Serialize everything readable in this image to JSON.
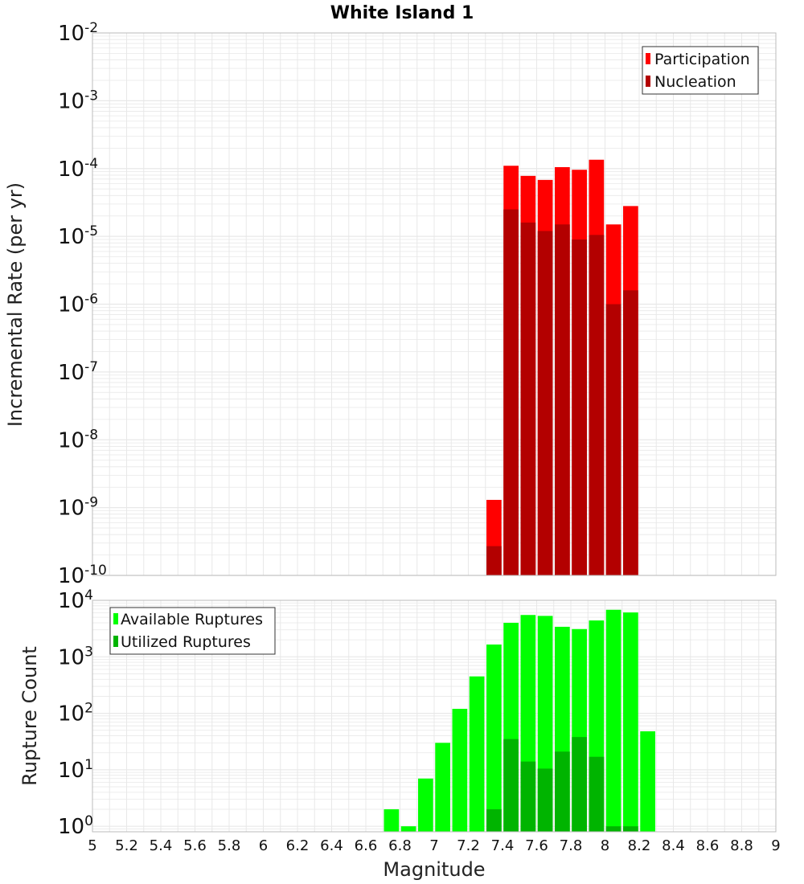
{
  "chart_data": [
    {
      "type": "bar",
      "title": "White Island 1",
      "xlabel": "",
      "ylabel": "Incremental Rate (per yr)",
      "y_scale": "log",
      "ylim": [
        1e-10,
        0.01
      ],
      "xlim": [
        5,
        9
      ],
      "legend_position": "top-right",
      "grid": true,
      "series": [
        {
          "name": "Participation",
          "color": "#ff0000",
          "x": [
            7.35,
            7.45,
            7.55,
            7.65,
            7.75,
            7.85,
            7.95,
            8.05,
            8.15
          ],
          "values": [
            1.3e-09,
            0.00011,
            7.8e-05,
            6.8e-05,
            0.000105,
            9.6e-05,
            0.000135,
            1.5e-05,
            2.8e-05
          ]
        },
        {
          "name": "Nucleation",
          "color": "#b30000",
          "x": [
            7.35,
            7.45,
            7.55,
            7.65,
            7.75,
            7.85,
            7.95,
            8.05,
            8.15
          ],
          "values": [
            2.7e-10,
            2.5e-05,
            1.6e-05,
            1.2e-05,
            1.5e-05,
            9e-06,
            1.05e-05,
            1e-06,
            1.6e-06
          ]
        }
      ]
    },
    {
      "type": "bar",
      "title": "",
      "xlabel": "Magnitude",
      "ylabel": "Rupture Count",
      "y_scale": "log",
      "ylim": [
        0.8,
        10000.0
      ],
      "xlim": [
        5,
        9
      ],
      "legend_position": "top-left",
      "grid": true,
      "series": [
        {
          "name": "Available Ruptures",
          "color": "#00ff00",
          "x": [
            6.75,
            6.85,
            6.95,
            7.05,
            7.15,
            7.25,
            7.35,
            7.45,
            7.55,
            7.65,
            7.75,
            7.85,
            7.95,
            8.05,
            8.15,
            8.25
          ],
          "values": [
            2,
            1,
            7,
            30,
            120,
            450,
            1650,
            4000,
            5500,
            5300,
            3400,
            3100,
            4400,
            6800,
            6100,
            48
          ]
        },
        {
          "name": "Utilized Ruptures",
          "color": "#00b400",
          "x": [
            7.35,
            7.45,
            7.55,
            7.65,
            7.75,
            7.85,
            7.95,
            8.05,
            8.15
          ],
          "values": [
            2,
            35,
            14,
            10.5,
            21,
            38,
            17,
            1,
            1
          ]
        }
      ]
    }
  ],
  "x_ticks": [
    "5",
    "5.2",
    "5.4",
    "5.6",
    "5.8",
    "6",
    "6.2",
    "6.4",
    "6.6",
    "6.8",
    "7",
    "7.2",
    "7.4",
    "7.6",
    "7.8",
    "8",
    "8.2",
    "8.4",
    "8.6",
    "8.8",
    "9"
  ],
  "top_y_ticks": [
    {
      "base": "10",
      "exp": "-2"
    },
    {
      "base": "10",
      "exp": "-3"
    },
    {
      "base": "10",
      "exp": "-4"
    },
    {
      "base": "10",
      "exp": "-5"
    },
    {
      "base": "10",
      "exp": "-6"
    },
    {
      "base": "10",
      "exp": "-7"
    },
    {
      "base": "10",
      "exp": "-8"
    },
    {
      "base": "10",
      "exp": "-9"
    },
    {
      "base": "10",
      "exp": "-10"
    }
  ],
  "bottom_y_ticks": [
    {
      "base": "10",
      "exp": "4"
    },
    {
      "base": "10",
      "exp": "3"
    },
    {
      "base": "10",
      "exp": "2"
    },
    {
      "base": "10",
      "exp": "1"
    },
    {
      "base": "10",
      "exp": "0"
    }
  ],
  "colors": {
    "grid": "#e8e8e8",
    "frame": "#bbbbbb"
  }
}
